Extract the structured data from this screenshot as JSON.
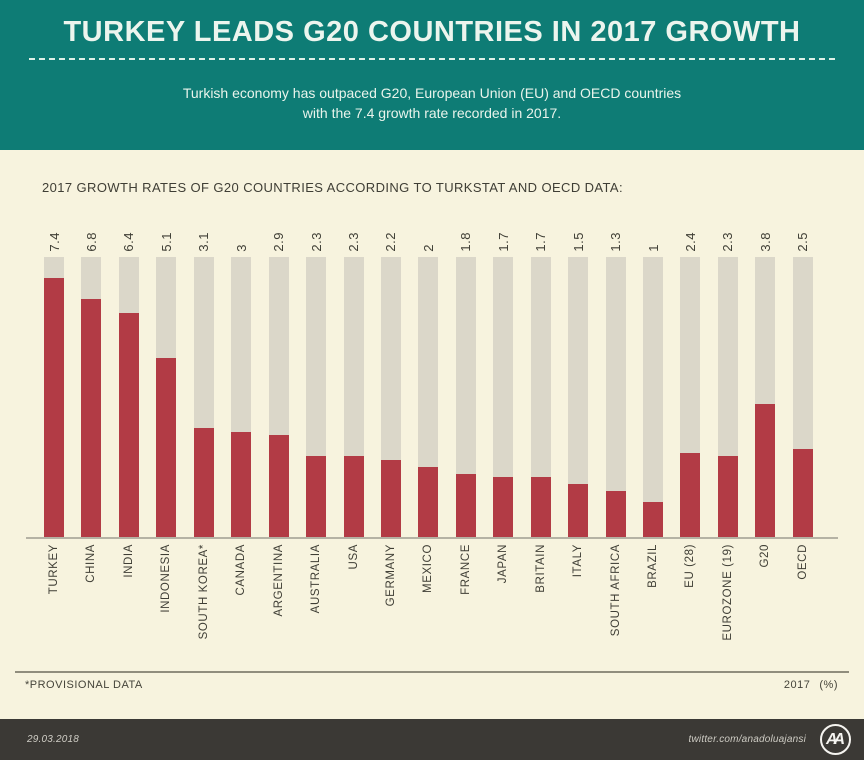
{
  "header": {
    "title": "TURKEY LEADS G20 COUNTRIES IN 2017 GROWTH",
    "subtitle_line1": "Turkish economy has outpaced G20, European Union (EU) and OECD countries",
    "subtitle_line2": "with the 7.4 growth rate recorded in 2017."
  },
  "chart_data": {
    "type": "bar",
    "title": "2017 GROWTH RATES OF G20 COUNTRIES ACCORDING TO TURKSTAT AND OECD DATA:",
    "categories": [
      "TURKEY",
      "CHINA",
      "INDIA",
      "INDONESIA",
      "SOUTH KOREA*",
      "CANADA",
      "ARGENTINA",
      "AUSTRALIA",
      "USA",
      "GERMANY",
      "MEXICO",
      "FRANCE",
      "JAPAN",
      "BRITAIN",
      "ITALY",
      "SOUTH AFRICA",
      "BRAZIL",
      "EU (28)",
      "EUROZONE (19)",
      "G20",
      "OECD"
    ],
    "values": [
      7.4,
      6.8,
      6.4,
      5.1,
      3.1,
      3,
      2.9,
      2.3,
      2.3,
      2.2,
      2,
      1.8,
      1.7,
      1.7,
      1.5,
      1.3,
      1,
      2.4,
      2.3,
      3.8,
      2.5
    ],
    "display_values": [
      "7.4",
      "6.8",
      "6.4",
      "5.1",
      "3.1",
      "3",
      "2.9",
      "2.3",
      "2.3",
      "2.2",
      "2",
      "1.8",
      "1.7",
      "1.7",
      "1.5",
      "1.3",
      "1",
      "2.4",
      "2.3",
      "3.8",
      "2.5"
    ],
    "ylim": [
      0,
      8
    ],
    "unit": "%",
    "grid": false,
    "legend": "none",
    "bar_color": "#b23b45",
    "track_color": "#dbd7c9",
    "background_color": "#f7f3de",
    "header_color": "#0e7c75"
  },
  "footer": {
    "note": "*PROVISIONAL DATA",
    "year": "2017",
    "unit": "(%)"
  },
  "bottom_bar": {
    "date": "29.03.2018",
    "handle": "twitter.com/anadoluajansi",
    "logo_text": "AA"
  }
}
